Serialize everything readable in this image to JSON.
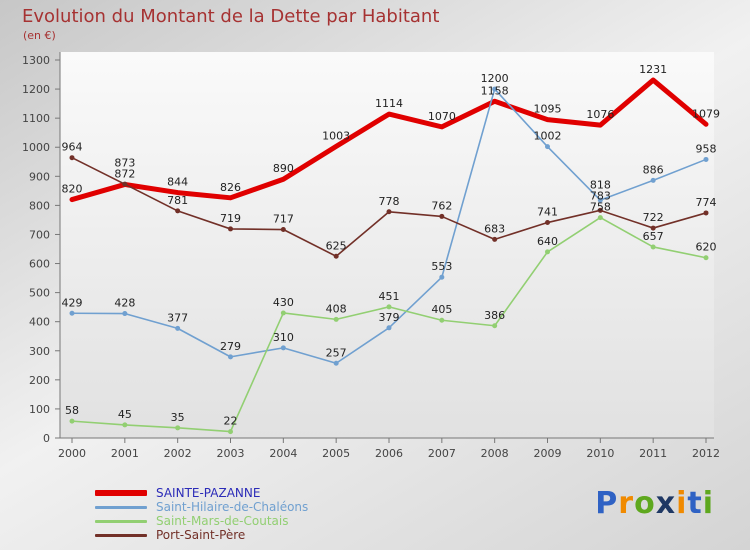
{
  "header": {
    "title": "Evolution du Montant de la Dette par Habitant",
    "subtitle": "(en €)"
  },
  "chart_data": {
    "type": "line",
    "categories": [
      "2000",
      "2001",
      "2002",
      "2003",
      "2004",
      "2005",
      "2006",
      "2007",
      "2008",
      "2009",
      "2010",
      "2011",
      "2012"
    ],
    "ylim": [
      0,
      1300
    ],
    "ytick": 100,
    "grid": false,
    "legend_position": "bottom-left",
    "series": [
      {
        "id": "sainte-pazanne",
        "name": "SAINTE-PAZANNE",
        "color": "#e00000",
        "label_color": "#2b2bb8",
        "width": 5,
        "marker": 0,
        "values": [
          820,
          872,
          844,
          826,
          890,
          1003,
          1114,
          1070,
          1158,
          1095,
          1076,
          1231,
          1079
        ]
      },
      {
        "id": "saint-hilaire-de-chaleons",
        "name": "Saint-Hilaire-de-Chaléons",
        "color": "#70a0d0",
        "label_color": "#70a0d0",
        "width": 1.6,
        "marker": 2.5,
        "values": [
          429,
          428,
          377,
          279,
          310,
          257,
          379,
          553,
          1200,
          1002,
          818,
          886,
          958
        ]
      },
      {
        "id": "saint-mars-de-coutais",
        "name": "Saint-Mars-de-Coutais",
        "color": "#92cf72",
        "label_color": "#92cf72",
        "width": 1.6,
        "marker": 2.5,
        "values": [
          58,
          45,
          35,
          22,
          430,
          408,
          451,
          405,
          386,
          640,
          758,
          657,
          620
        ]
      },
      {
        "id": "port-saint-pere",
        "name": "Port-Saint-Père",
        "color": "#723028",
        "label_color": "#723028",
        "width": 1.6,
        "marker": 2.5,
        "values": [
          964,
          873,
          781,
          719,
          717,
          625,
          778,
          762,
          683,
          741,
          783,
          722,
          774
        ]
      }
    ]
  },
  "logo": {
    "text": "Proxiti",
    "letters": [
      {
        "ch": "P",
        "color": "#2f62c4"
      },
      {
        "ch": "r",
        "color": "#f08a00"
      },
      {
        "ch": "o",
        "color": "#5ea81e"
      },
      {
        "ch": "x",
        "color": "#1f3864"
      },
      {
        "ch": "i",
        "color": "#f08a00"
      },
      {
        "ch": "t",
        "color": "#2f62c4"
      },
      {
        "ch": "i",
        "color": "#5ea81e"
      }
    ]
  }
}
